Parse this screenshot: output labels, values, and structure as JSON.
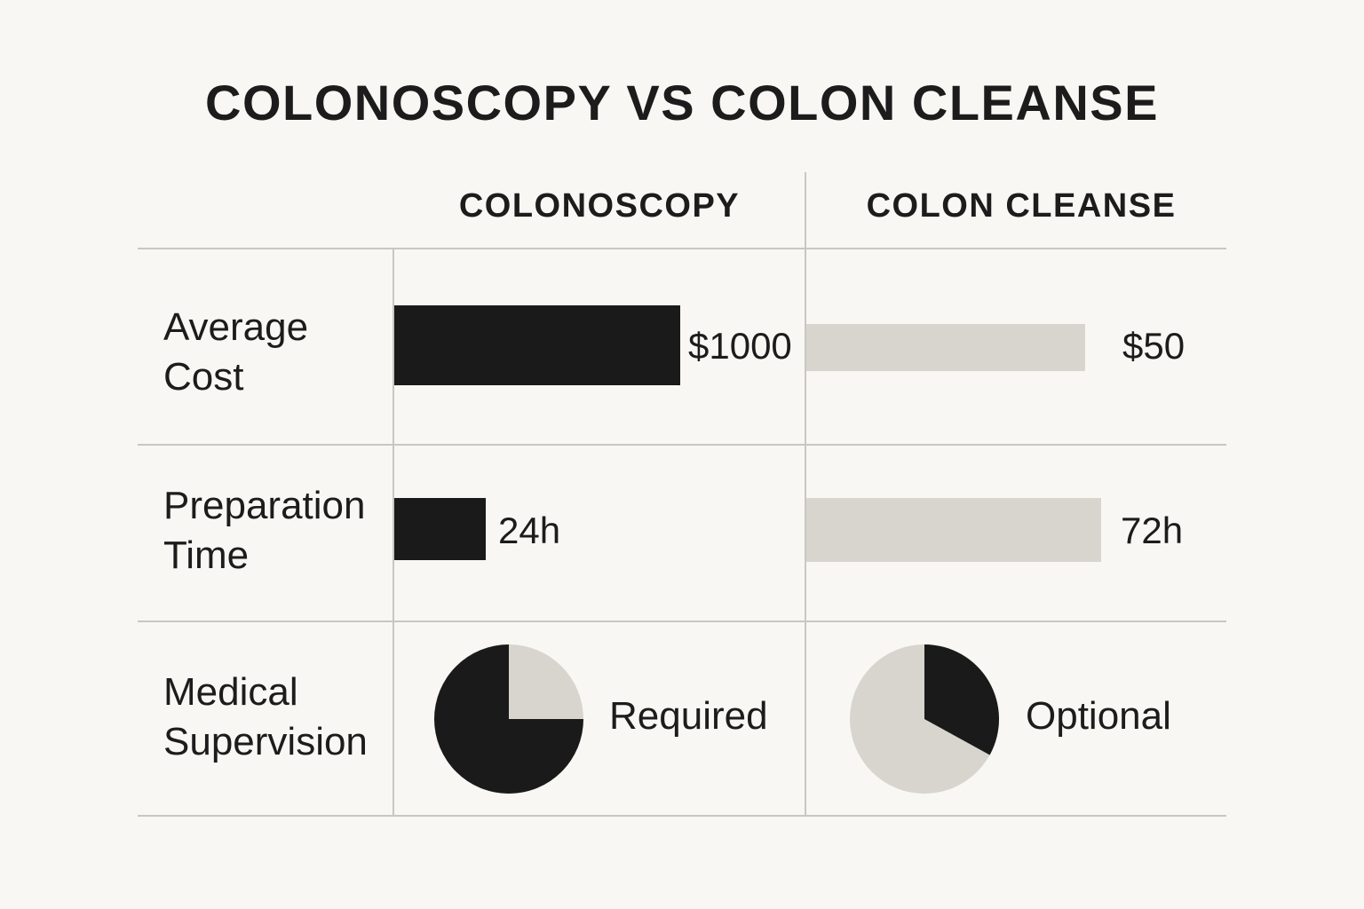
{
  "title": "COLONOSCOPY VS COLON CLEANSE",
  "columns": [
    "COLONOSCOPY",
    "COLON CLEANSE"
  ],
  "rows": [
    {
      "label_lines": [
        "Average",
        "Cost"
      ]
    },
    {
      "label_lines": [
        "Preparation",
        "Time"
      ]
    },
    {
      "label_lines": [
        "Medical",
        "Supervision"
      ]
    }
  ],
  "colors": {
    "colonoscopy": "#1a1a1a",
    "colon_cleanse": "#d8d5cf",
    "background": "#f9f7f3",
    "grid": "#c9c7c2"
  },
  "chart_data": {
    "type": "table",
    "metrics": [
      {
        "name": "Average Cost",
        "colonoscopy": {
          "value": 1000,
          "label": "$1000"
        },
        "colon_cleanse": {
          "value": 50,
          "label": "$50"
        }
      },
      {
        "name": "Preparation Time",
        "colonoscopy": {
          "value": 24,
          "label": "24h"
        },
        "colon_cleanse": {
          "value": 72,
          "label": "72h"
        }
      },
      {
        "name": "Medical Supervision",
        "colonoscopy": {
          "fraction": 0.75,
          "label": "Required"
        },
        "colon_cleanse": {
          "fraction": 0.33,
          "label": "Optional"
        }
      }
    ]
  }
}
